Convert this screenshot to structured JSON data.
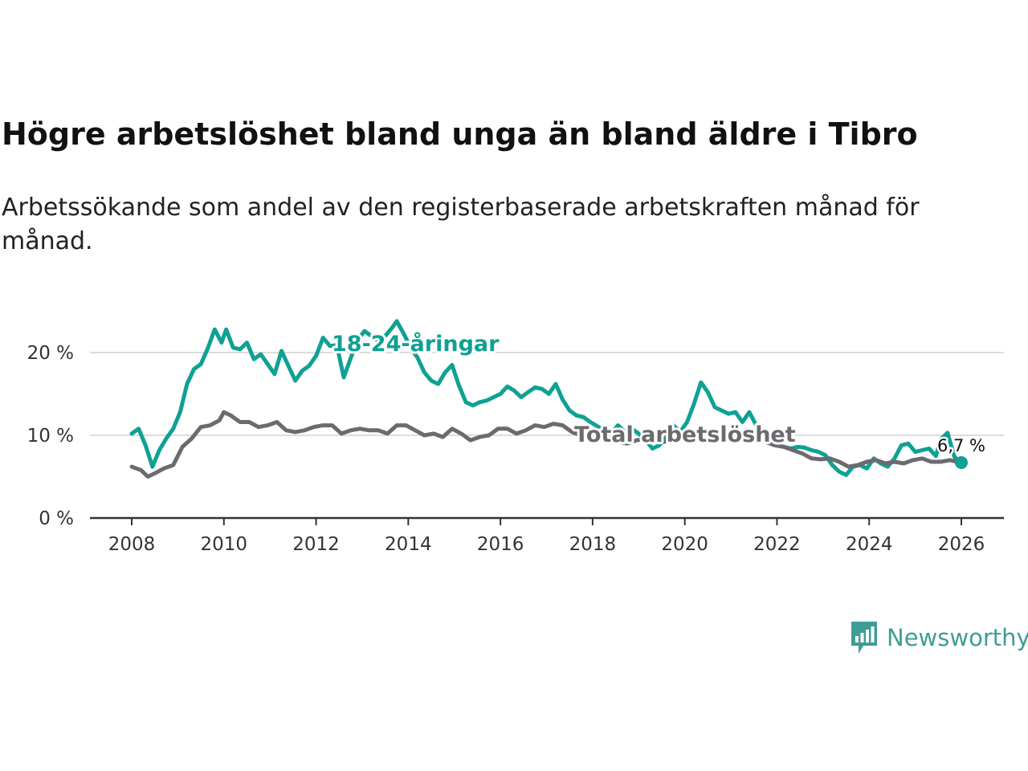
{
  "chart_data": {
    "type": "line",
    "title": "Högre arbetslöshet bland unga än bland äldre i Tibro",
    "subtitle": "Arbetssökande som andel av den registerbaserade arbetskraften månad för månad.",
    "xlabel": "",
    "ylabel": "",
    "xlim": [
      2007.6,
      2026.9
    ],
    "ylim": [
      0,
      25
    ],
    "y_ticks": [
      0,
      10,
      20
    ],
    "y_tick_labels": [
      "0 %",
      "10 %",
      "20 %"
    ],
    "x_ticks": [
      2008,
      2010,
      2012,
      2014,
      2016,
      2018,
      2020,
      2022,
      2024,
      2026
    ],
    "x_tick_labels": [
      "2008",
      "2010",
      "2012",
      "2014",
      "2016",
      "2018",
      "2020",
      "2022",
      "2024",
      "2026"
    ],
    "grid": true,
    "series": [
      {
        "name": "18-24-åringar",
        "color": "#0fa193",
        "x": [
          2008.0,
          2008.15,
          2008.3,
          2008.45,
          2008.6,
          2008.75,
          2008.9,
          2009.05,
          2009.2,
          2009.35,
          2009.5,
          2009.65,
          2009.8,
          2009.95,
          2010.05,
          2010.2,
          2010.35,
          2010.5,
          2010.65,
          2010.8,
          2010.95,
          2011.1,
          2011.25,
          2011.4,
          2011.55,
          2011.7,
          2011.85,
          2012.0,
          2012.15,
          2012.3,
          2012.45,
          2012.6,
          2012.75,
          2012.9,
          2013.05,
          2013.2,
          2013.35,
          2013.5,
          2013.65,
          2013.75,
          2013.9,
          2014.05,
          2014.2,
          2014.35,
          2014.5,
          2014.65,
          2014.8,
          2014.95,
          2015.1,
          2015.25,
          2015.4,
          2015.55,
          2015.7,
          2015.85,
          2016.0,
          2016.15,
          2016.3,
          2016.45,
          2016.6,
          2016.75,
          2016.9,
          2017.05,
          2017.2,
          2017.35,
          2017.5,
          2017.65,
          2017.8,
          2017.95,
          2018.1,
          2018.25,
          2018.4,
          2018.55,
          2018.7,
          2018.85,
          2019.0,
          2019.15,
          2019.3,
          2019.45,
          2019.6,
          2019.75,
          2019.9,
          2020.05,
          2020.2,
          2020.35,
          2020.5,
          2020.65,
          2020.8,
          2020.95,
          2021.1,
          2021.25,
          2021.4,
          2021.55,
          2021.7,
          2021.85,
          2022.0,
          2022.15,
          2022.3,
          2022.45,
          2022.6,
          2022.75,
          2022.9,
          2023.05,
          2023.2,
          2023.35,
          2023.5,
          2023.65,
          2023.8,
          2023.95,
          2024.1,
          2024.25,
          2024.4,
          2024.55,
          2024.7,
          2024.85,
          2025.0,
          2025.15,
          2025.3,
          2025.45,
          2025.55,
          2025.7,
          2025.85,
          2026.0
        ],
        "values": [
          10.2,
          10.8,
          8.8,
          6.2,
          8.2,
          9.6,
          10.8,
          12.8,
          16.2,
          18.0,
          18.6,
          20.5,
          22.8,
          21.2,
          22.8,
          20.6,
          20.4,
          21.2,
          19.2,
          19.8,
          18.6,
          17.4,
          20.2,
          18.4,
          16.6,
          17.8,
          18.4,
          19.6,
          21.8,
          20.8,
          20.9,
          17.0,
          19.3,
          21.5,
          22.6,
          22.0,
          21.4,
          22.0,
          23.0,
          23.8,
          22.3,
          20.6,
          19.4,
          17.6,
          16.6,
          16.2,
          17.6,
          18.5,
          16.0,
          14.0,
          13.6,
          14.0,
          14.2,
          14.6,
          15.0,
          15.9,
          15.4,
          14.6,
          15.2,
          15.8,
          15.6,
          15.0,
          16.2,
          14.3,
          13.0,
          12.4,
          12.2,
          11.6,
          11.1,
          10.7,
          10.2,
          11.2,
          10.4,
          10.8,
          10.2,
          9.4,
          8.4,
          8.8,
          9.8,
          11.2,
          10.4,
          11.6,
          13.8,
          16.4,
          15.2,
          13.4,
          13.0,
          12.6,
          12.8,
          11.6,
          12.8,
          11.2,
          9.6,
          9.2,
          8.8,
          8.6,
          8.4,
          8.6,
          8.5,
          8.2,
          8.0,
          7.6,
          6.4,
          5.6,
          5.2,
          6.2,
          6.4,
          6.0,
          7.2,
          6.6,
          6.2,
          7.2,
          8.8,
          9.0,
          8.0,
          8.2,
          8.4,
          7.5,
          9.5,
          10.3,
          7.4,
          6.7
        ]
      },
      {
        "name": "Total arbetslöshet",
        "color": "#6c6a6e",
        "x": [
          2008.0,
          2008.2,
          2008.35,
          2008.5,
          2008.7,
          2008.9,
          2009.1,
          2009.3,
          2009.5,
          2009.7,
          2009.9,
          2010.0,
          2010.15,
          2010.35,
          2010.55,
          2010.75,
          2010.95,
          2011.15,
          2011.35,
          2011.55,
          2011.75,
          2011.95,
          2012.15,
          2012.35,
          2012.55,
          2012.75,
          2012.95,
          2013.15,
          2013.35,
          2013.55,
          2013.75,
          2013.95,
          2014.15,
          2014.35,
          2014.55,
          2014.75,
          2014.95,
          2015.15,
          2015.35,
          2015.55,
          2015.75,
          2015.95,
          2016.15,
          2016.35,
          2016.55,
          2016.75,
          2016.95,
          2017.15,
          2017.35,
          2017.55,
          2017.75,
          2017.95,
          2018.15,
          2018.35,
          2018.55,
          2018.75,
          2018.95,
          2019.15,
          2019.35,
          2019.55,
          2019.75,
          2019.95,
          2020.15,
          2020.35,
          2020.55,
          2020.75,
          2020.95,
          2021.15,
          2021.35,
          2021.55,
          2021.75,
          2021.95,
          2022.15,
          2022.35,
          2022.55,
          2022.75,
          2022.95,
          2023.15,
          2023.35,
          2023.55,
          2023.75,
          2023.95,
          2024.15,
          2024.35,
          2024.55,
          2024.75,
          2024.95,
          2025.15,
          2025.35,
          2025.55,
          2025.75,
          2026.0
        ],
        "values": [
          6.2,
          5.8,
          5.0,
          5.4,
          6.0,
          6.4,
          8.6,
          9.6,
          11.0,
          11.2,
          11.8,
          12.8,
          12.4,
          11.6,
          11.6,
          11.0,
          11.2,
          11.6,
          10.6,
          10.4,
          10.6,
          11.0,
          11.2,
          11.2,
          10.2,
          10.6,
          10.8,
          10.6,
          10.6,
          10.2,
          11.2,
          11.2,
          10.6,
          10.0,
          10.2,
          9.8,
          10.8,
          10.2,
          9.4,
          9.8,
          10.0,
          10.8,
          10.8,
          10.2,
          10.6,
          11.2,
          11.0,
          11.4,
          11.2,
          10.4,
          10.0,
          9.8,
          9.8,
          9.6,
          9.2,
          9.0,
          9.4,
          9.6,
          9.2,
          9.2,
          9.6,
          9.6,
          10.2,
          10.6,
          10.4,
          10.2,
          10.2,
          10.2,
          10.0,
          9.6,
          9.2,
          8.8,
          8.6,
          8.2,
          7.8,
          7.2,
          7.1,
          7.2,
          6.8,
          6.2,
          6.4,
          6.8,
          7.0,
          6.6,
          6.8,
          6.6,
          7.0,
          7.2,
          6.8,
          6.8,
          7.0,
          6.7
        ]
      }
    ],
    "annotations": {
      "youth_label": "18-24-åringar",
      "total_label": "Total arbetslöshet",
      "end_value_label": "6,7 %"
    }
  },
  "branding": {
    "logo_text": "Newsworthy",
    "logo_icon": "bar-chart-speech-bubble-icon",
    "logo_color": "#3e9e96"
  }
}
